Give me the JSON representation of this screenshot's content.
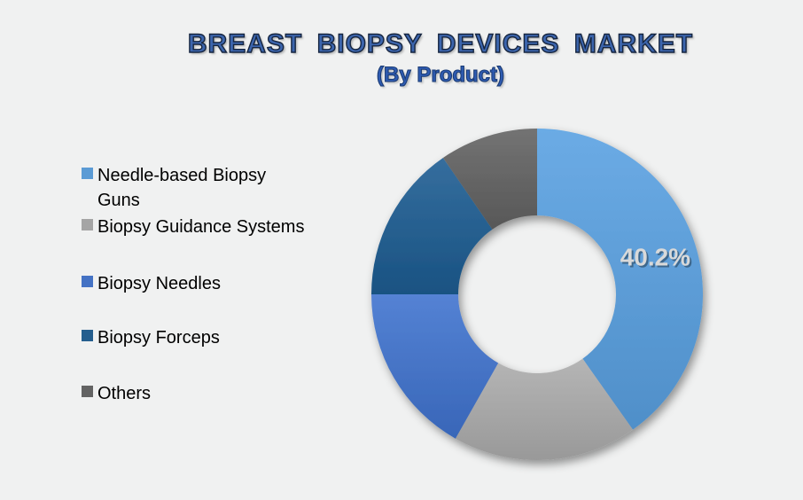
{
  "header": {
    "title": "BREAST BIOPSY DEVICES MARKET",
    "subtitle": "(By Product)"
  },
  "chart_data": {
    "type": "pie",
    "variant": "donut",
    "title": "BREAST BIOPSY DEVICES MARKET",
    "subtitle": "(By Product)",
    "legend_position": "left",
    "direction": "clockwise",
    "start_angle_deg": 0,
    "inner_radius_ratio": 0.48,
    "data_label_color": "#d9d9d9",
    "slices": [
      {
        "label": "Needle-based Biopsy Guns",
        "value_pct": 40.2,
        "data_label": "40.2%",
        "color": "#5B9BD5"
      },
      {
        "label": "Biopsy Guidance Systems",
        "value_pct": 18.0,
        "data_label": "",
        "color": "#A5A5A5"
      },
      {
        "label": "Biopsy Needles",
        "value_pct": 16.8,
        "data_label": "",
        "color": "#4472C4"
      },
      {
        "label": "Biopsy Forceps",
        "value_pct": 15.4,
        "data_label": "",
        "color": "#255E8E"
      },
      {
        "label": "Others",
        "value_pct": 9.6,
        "data_label": "",
        "color": "#636363"
      }
    ]
  }
}
